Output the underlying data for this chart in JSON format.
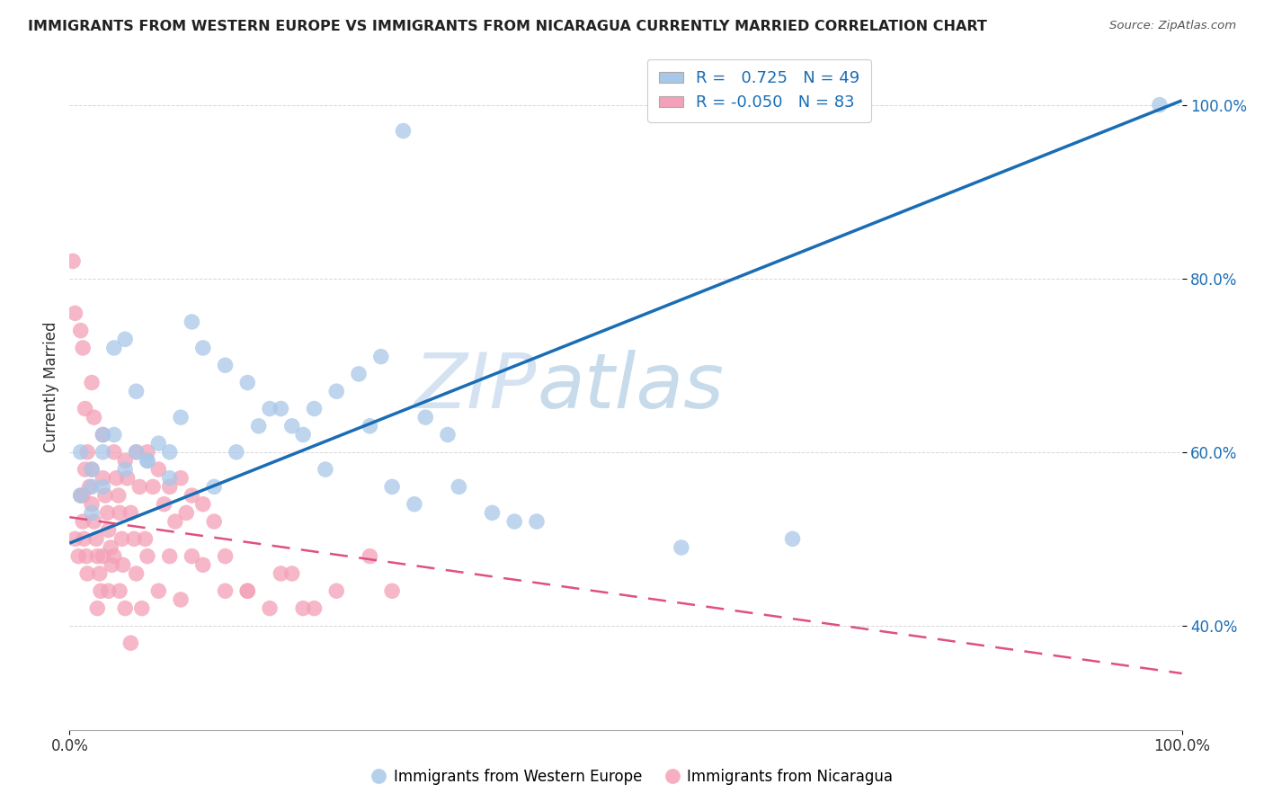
{
  "title": "IMMIGRANTS FROM WESTERN EUROPE VS IMMIGRANTS FROM NICARAGUA CURRENTLY MARRIED CORRELATION CHART",
  "source": "Source: ZipAtlas.com",
  "ylabel": "Currently Married",
  "watermark_zip": "ZIP",
  "watermark_atlas": "atlas",
  "legend_blue_R": "0.725",
  "legend_blue_N": "49",
  "legend_pink_R": "-0.050",
  "legend_pink_N": "83",
  "blue_color": "#a8c8e8",
  "pink_color": "#f4a0b8",
  "blue_line_color": "#1a6db5",
  "pink_line_color": "#e05080",
  "blue_scatter_x": [
    0.3,
    0.02,
    0.04,
    0.06,
    0.07,
    0.02,
    0.03,
    0.08,
    0.09,
    0.01,
    0.02,
    0.03,
    0.1,
    0.04,
    0.05,
    0.06,
    0.11,
    0.12,
    0.14,
    0.16,
    0.18,
    0.2,
    0.22,
    0.24,
    0.26,
    0.28,
    0.32,
    0.34,
    0.38,
    0.42,
    0.55,
    0.65,
    0.98,
    0.01,
    0.03,
    0.05,
    0.07,
    0.09,
    0.13,
    0.15,
    0.17,
    0.19,
    0.21,
    0.23,
    0.27,
    0.29,
    0.31,
    0.35,
    0.4
  ],
  "blue_scatter_y": [
    0.97,
    0.58,
    0.62,
    0.6,
    0.59,
    0.53,
    0.56,
    0.61,
    0.57,
    0.55,
    0.56,
    0.62,
    0.64,
    0.72,
    0.73,
    0.67,
    0.75,
    0.72,
    0.7,
    0.68,
    0.65,
    0.63,
    0.65,
    0.67,
    0.69,
    0.71,
    0.64,
    0.62,
    0.53,
    0.52,
    0.49,
    0.5,
    1.0,
    0.6,
    0.6,
    0.58,
    0.59,
    0.6,
    0.56,
    0.6,
    0.63,
    0.65,
    0.62,
    0.58,
    0.63,
    0.56,
    0.54,
    0.56,
    0.52
  ],
  "pink_scatter_x": [
    0.005,
    0.008,
    0.01,
    0.012,
    0.013,
    0.015,
    0.016,
    0.012,
    0.014,
    0.016,
    0.018,
    0.02,
    0.022,
    0.024,
    0.025,
    0.027,
    0.028,
    0.02,
    0.03,
    0.032,
    0.034,
    0.035,
    0.037,
    0.038,
    0.03,
    0.04,
    0.042,
    0.044,
    0.045,
    0.047,
    0.048,
    0.05,
    0.052,
    0.055,
    0.058,
    0.06,
    0.063,
    0.068,
    0.07,
    0.075,
    0.08,
    0.085,
    0.09,
    0.095,
    0.1,
    0.105,
    0.11,
    0.12,
    0.13,
    0.14,
    0.16,
    0.18,
    0.2,
    0.22,
    0.003,
    0.005,
    0.01,
    0.012,
    0.014,
    0.02,
    0.022,
    0.025,
    0.03,
    0.035,
    0.04,
    0.045,
    0.05,
    0.055,
    0.06,
    0.065,
    0.07,
    0.08,
    0.09,
    0.1,
    0.11,
    0.12,
    0.14,
    0.16,
    0.19,
    0.21,
    0.24,
    0.27,
    0.29
  ],
  "pink_scatter_y": [
    0.5,
    0.48,
    0.55,
    0.52,
    0.5,
    0.48,
    0.46,
    0.55,
    0.58,
    0.6,
    0.56,
    0.54,
    0.52,
    0.5,
    0.48,
    0.46,
    0.44,
    0.58,
    0.57,
    0.55,
    0.53,
    0.51,
    0.49,
    0.47,
    0.62,
    0.6,
    0.57,
    0.55,
    0.53,
    0.5,
    0.47,
    0.59,
    0.57,
    0.53,
    0.5,
    0.6,
    0.56,
    0.5,
    0.6,
    0.56,
    0.58,
    0.54,
    0.56,
    0.52,
    0.57,
    0.53,
    0.55,
    0.54,
    0.52,
    0.48,
    0.44,
    0.42,
    0.46,
    0.42,
    0.82,
    0.76,
    0.74,
    0.72,
    0.65,
    0.68,
    0.64,
    0.42,
    0.48,
    0.44,
    0.48,
    0.44,
    0.42,
    0.38,
    0.46,
    0.42,
    0.48,
    0.44,
    0.48,
    0.43,
    0.48,
    0.47,
    0.44,
    0.44,
    0.46,
    0.42,
    0.44,
    0.48,
    0.44
  ],
  "blue_line_x0": 0.0,
  "blue_line_y0": 0.495,
  "blue_line_x1": 1.0,
  "blue_line_y1": 1.005,
  "pink_line_x0": 0.0,
  "pink_line_y0": 0.525,
  "pink_line_x1": 1.0,
  "pink_line_y1": 0.345,
  "xlim": [
    0.0,
    1.0
  ],
  "ylim": [
    0.28,
    1.07
  ],
  "yticks": [
    0.4,
    0.6,
    0.8,
    1.0
  ],
  "ytick_labels": [
    "40.0%",
    "60.0%",
    "80.0%",
    "100.0%"
  ],
  "xtick_positions": [
    0.0,
    1.0
  ],
  "xtick_labels": [
    "0.0%",
    "100.0%"
  ],
  "background_color": "#ffffff",
  "grid_color": "#cccccc",
  "axis_label_blue": "Immigrants from Western Europe",
  "axis_label_pink": "Immigrants from Nicaragua"
}
